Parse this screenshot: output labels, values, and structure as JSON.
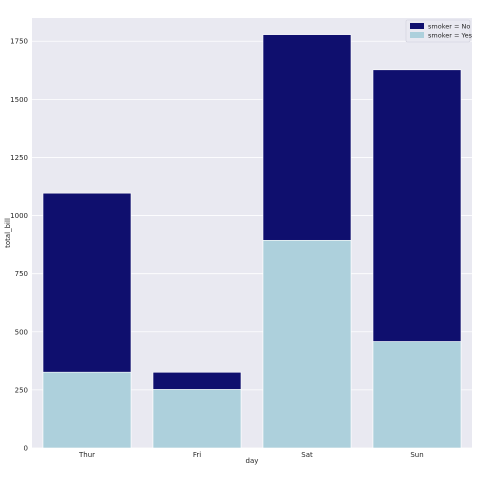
{
  "chart_data": {
    "type": "bar",
    "stacked": "overlay",
    "title": "",
    "xlabel": "day",
    "ylabel": "total_bill",
    "categories": [
      "Thur",
      "Fri",
      "Sat",
      "Sun"
    ],
    "y_ticks": [
      "0",
      "250",
      "500",
      "750",
      "1000",
      "1250",
      "1500",
      "1750"
    ],
    "ylim": [
      0,
      1850
    ],
    "grid": true,
    "legend_position": "top-right",
    "series": [
      {
        "name": "smoker = No",
        "values": [
          1096.33,
          325.88,
          1778.4,
          1627.16
        ],
        "color": "#0f0f6e"
      },
      {
        "name": "smoker = Yes",
        "values": [
          326.24,
          252.2,
          893.62,
          458.28
        ],
        "color": "#add0dc"
      }
    ],
    "background_color": "#e9e9f1",
    "grid_color": "#ffffff"
  }
}
